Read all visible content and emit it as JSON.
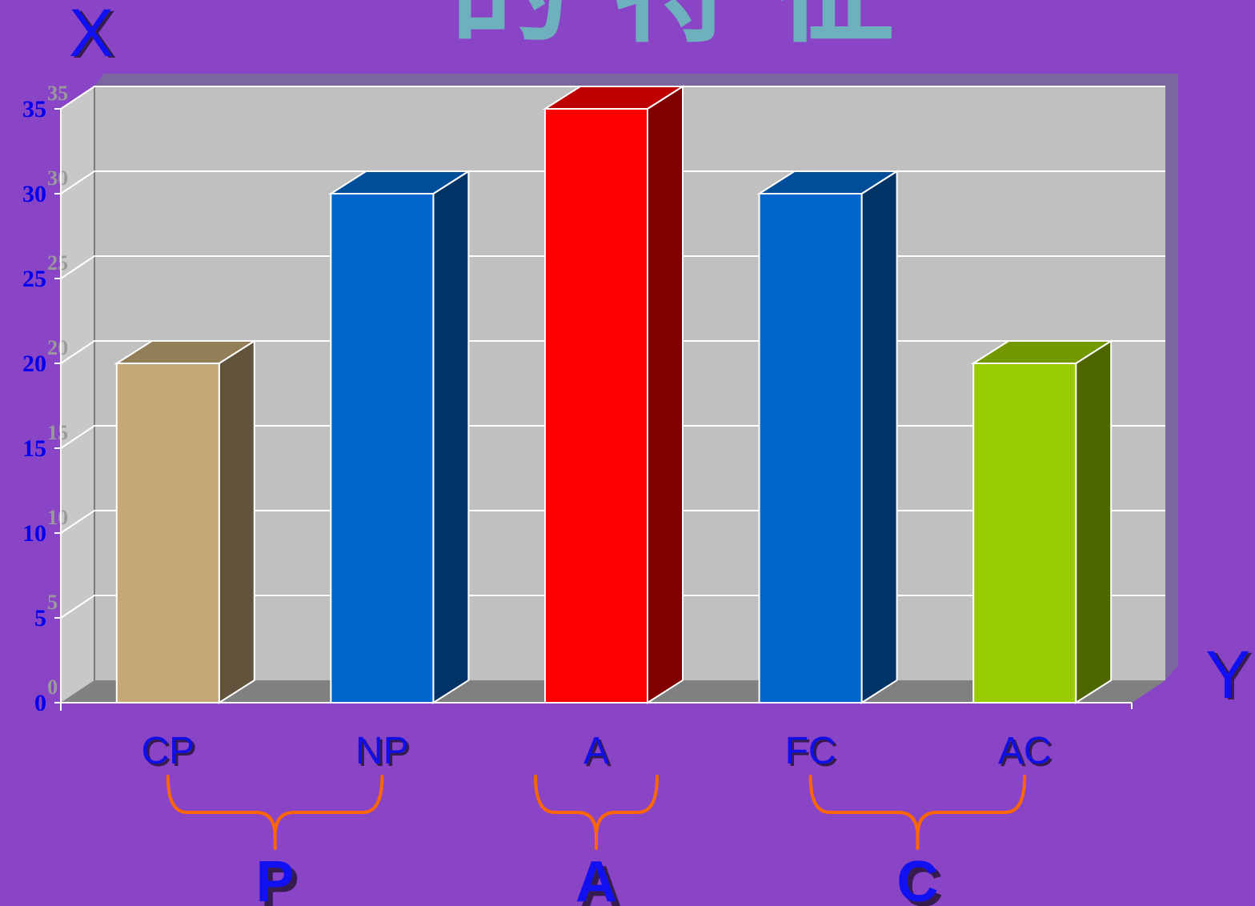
{
  "title": "的 特 征",
  "axis_letters": {
    "x": "X",
    "y": "Y"
  },
  "chart_data": {
    "type": "bar",
    "categories": [
      "CP",
      "NP",
      "A",
      "FC",
      "AC"
    ],
    "values": [
      20,
      30,
      35,
      30,
      20
    ],
    "ylim": [
      0,
      35
    ],
    "yticks": [
      0,
      5,
      10,
      15,
      20,
      25,
      30,
      35
    ],
    "grid": true,
    "bar_colors": [
      "#C4A878",
      "#0066CC",
      "#FF0000",
      "#0066CC",
      "#99CC00"
    ],
    "groups": [
      {
        "label": "P",
        "members": [
          "CP",
          "NP"
        ]
      },
      {
        "label": "A",
        "members": [
          "A"
        ]
      },
      {
        "label": "C",
        "members": [
          "FC",
          "AC"
        ]
      }
    ]
  }
}
